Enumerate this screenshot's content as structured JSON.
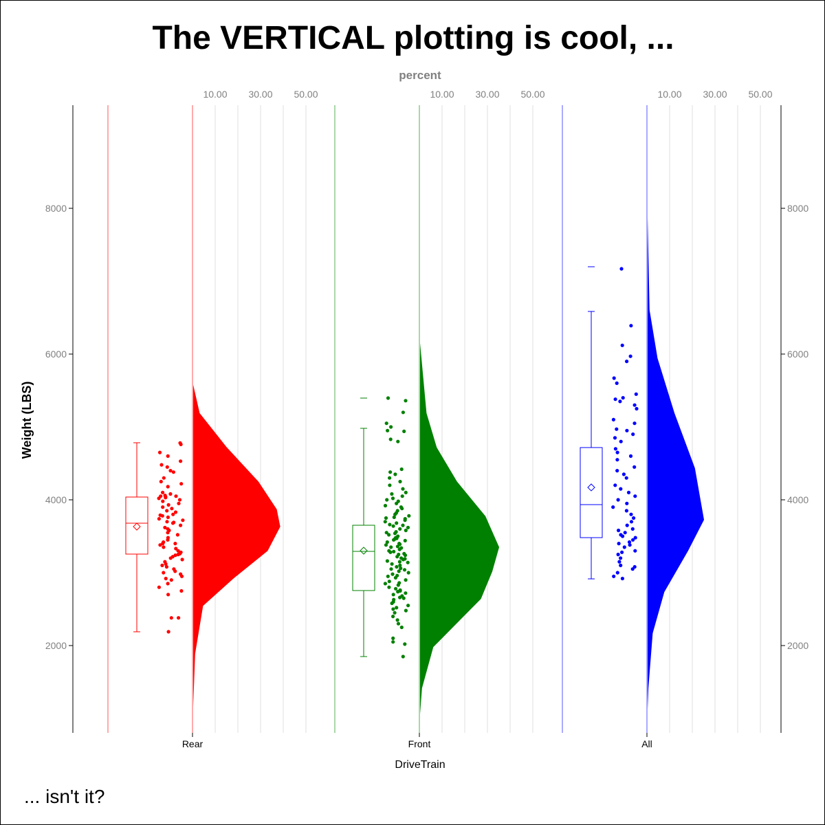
{
  "chart_data": {
    "type": "raincloud",
    "title": "The VERTICAL plotting is cool, ...",
    "footnote": "... isn't it?",
    "xlabel": "DriveTrain",
    "ylabel": "Weight (LBS)",
    "top_axis_label": "percent",
    "top_axis_ticks": [
      "10.00",
      "30.00",
      "50.00"
    ],
    "top_axis_grid": [
      10,
      20,
      30,
      40,
      50
    ],
    "ylim": [
      800,
      9415
    ],
    "yticks": [
      2000,
      4000,
      6000,
      8000
    ],
    "grid": false,
    "groups": [
      {
        "name": "Rear",
        "color": "#ff0000",
        "light": "#ffaaaa",
        "box": {
          "min": 2189,
          "q1": 3255,
          "median": 3679,
          "mean": 3632,
          "q3": 4038,
          "max": 4783,
          "outliers": []
        },
        "density": [
          [
            5600,
            0
          ],
          [
            5189,
            3
          ],
          [
            4717,
            15
          ],
          [
            4245,
            29
          ],
          [
            3868,
            37
          ],
          [
            3632,
            38.5
          ],
          [
            3302,
            33
          ],
          [
            2925,
            18
          ],
          [
            2547,
            4.5
          ],
          [
            1887,
            1
          ],
          [
            1038,
            0
          ]
        ],
        "points": [
          4780,
          4760,
          4650,
          4600,
          4530,
          4480,
          4450,
          4400,
          4380,
          4300,
          4250,
          4220,
          4180,
          4100,
          4080,
          4060,
          4050,
          4050,
          4040,
          4030,
          4020,
          4000,
          3980,
          3950,
          3930,
          3900,
          3880,
          3850,
          3830,
          3800,
          3790,
          3780,
          3760,
          3740,
          3720,
          3700,
          3690,
          3680,
          3650,
          3620,
          3600,
          3580,
          3550,
          3520,
          3480,
          3450,
          3420,
          3400,
          3400,
          3380,
          3350,
          3330,
          3300,
          3280,
          3260,
          3250,
          3240,
          3220,
          3200,
          3180,
          3150,
          3120,
          3100,
          3080,
          3050,
          3020,
          3000,
          2980,
          2950,
          2920,
          2900,
          2850,
          2800,
          2750,
          2700,
          2380,
          2380,
          2190
        ]
      },
      {
        "name": "Front",
        "color": "#008000",
        "light": "#a8d8a8",
        "box": {
          "min": 1849,
          "q1": 2755,
          "median": 3292,
          "mean": 3302,
          "q3": 3651,
          "max": 4981,
          "outliers": [
            5396
          ]
        },
        "density": [
          [
            6200,
            0
          ],
          [
            5189,
            3
          ],
          [
            4717,
            7.5
          ],
          [
            4245,
            16.5
          ],
          [
            3773,
            29
          ],
          [
            3349,
            35
          ],
          [
            3019,
            32
          ],
          [
            2642,
            27
          ],
          [
            2359,
            18
          ],
          [
            1981,
            6
          ],
          [
            1415,
            1
          ],
          [
            1000,
            0
          ]
        ],
        "points": [
          5396,
          5360,
          5200,
          5050,
          5000,
          4950,
          4940,
          4830,
          4800,
          4420,
          4380,
          4350,
          4300,
          4250,
          4200,
          4150,
          4100,
          4080,
          4050,
          4020,
          4000,
          3980,
          3950,
          3920,
          3900,
          3880,
          3850,
          3820,
          3800,
          3780,
          3760,
          3750,
          3740,
          3720,
          3700,
          3680,
          3660,
          3650,
          3640,
          3620,
          3600,
          3580,
          3560,
          3550,
          3540,
          3520,
          3500,
          3480,
          3470,
          3460,
          3450,
          3440,
          3420,
          3400,
          3390,
          3380,
          3360,
          3350,
          3340,
          3320,
          3300,
          3290,
          3280,
          3260,
          3250,
          3240,
          3220,
          3200,
          3190,
          3180,
          3160,
          3150,
          3140,
          3120,
          3100,
          3080,
          3060,
          3050,
          3040,
          3020,
          3000,
          2980,
          2960,
          2950,
          2930,
          2900,
          2880,
          2860,
          2850,
          2830,
          2800,
          2780,
          2760,
          2750,
          2740,
          2720,
          2700,
          2680,
          2660,
          2650,
          2630,
          2600,
          2580,
          2550,
          2520,
          2500,
          2480,
          2450,
          2400,
          2350,
          2300,
          2250,
          2100,
          2050,
          2020,
          1849
        ]
      },
      {
        "name": "All",
        "color": "#0000ff",
        "light": "#aaaaff",
        "box": {
          "min": 2915,
          "q1": 3481,
          "median": 3934,
          "mean": 4170,
          "q3": 4717,
          "max": 6585,
          "outliers": [
            7198
          ]
        },
        "density": [
          [
            8100,
            0
          ],
          [
            6604,
            1
          ],
          [
            5943,
            4.5
          ],
          [
            5189,
            12
          ],
          [
            4434,
            21
          ],
          [
            3726,
            25
          ],
          [
            3302,
            18
          ],
          [
            2736,
            7.5
          ],
          [
            2170,
            2.4
          ],
          [
            1415,
            0.5
          ],
          [
            1000,
            0
          ]
        ],
        "points": [
          7170,
          6390,
          6120,
          5970,
          5900,
          5670,
          5600,
          5450,
          5400,
          5380,
          5350,
          5300,
          5250,
          5100,
          5050,
          4970,
          4950,
          4900,
          4850,
          4800,
          4700,
          4650,
          4600,
          4550,
          4450,
          4400,
          4350,
          4300,
          4200,
          4150,
          4100,
          4050,
          4000,
          3950,
          3900,
          3850,
          3800,
          3750,
          3700,
          3650,
          3600,
          3580,
          3550,
          3520,
          3500,
          3480,
          3450,
          3420,
          3400,
          3380,
          3350,
          3300,
          3280,
          3250,
          3200,
          3150,
          3100,
          3080,
          3050,
          3000,
          2950,
          2920
        ]
      }
    ]
  }
}
